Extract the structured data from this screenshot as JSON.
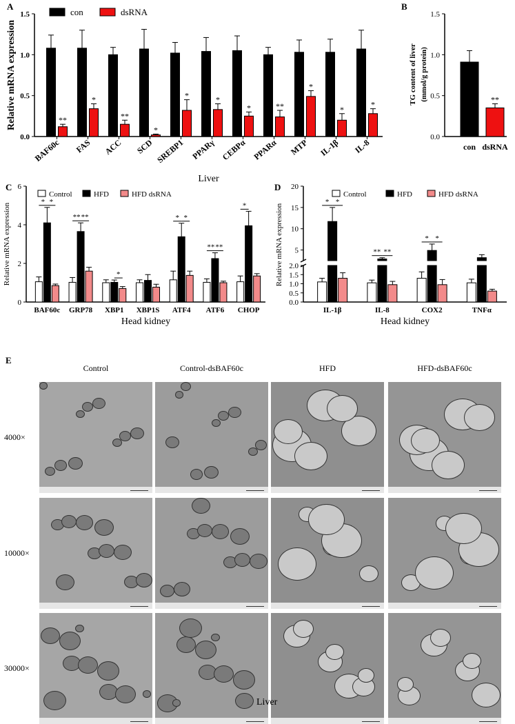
{
  "panel_labels": {
    "A": "A",
    "B": "B",
    "C": "C",
    "D": "D",
    "E": "E"
  },
  "colors": {
    "con": "#000000",
    "dsRNA": "#ee1111",
    "control": "#ffffff",
    "hfd": "#000000",
    "hfd_dsrna": "#f28a8a"
  },
  "chart_data": [
    {
      "id": "A",
      "type": "bar",
      "ylabel": "Relative mRNA expression",
      "xlabel": "Liver",
      "ylim": [
        0,
        1.5
      ],
      "yticks": [
        "0.0",
        "0.5",
        "1.0",
        "1.5"
      ],
      "categories": [
        "BAF60c",
        "FAS",
        "ACC",
        "SCD",
        "SREBP1",
        "PPARγ",
        "CEBPα",
        "PPARα",
        "MTP",
        "IL-1β",
        "IL-8"
      ],
      "series": [
        {
          "name": "con",
          "values": [
            1.08,
            1.08,
            1.0,
            1.07,
            1.02,
            1.04,
            1.05,
            1.0,
            1.03,
            1.03,
            1.07
          ],
          "errors": [
            0.16,
            0.22,
            0.09,
            0.24,
            0.13,
            0.17,
            0.18,
            0.09,
            0.15,
            0.16,
            0.23
          ]
        },
        {
          "name": "dsRNA",
          "values": [
            0.12,
            0.34,
            0.15,
            0.02,
            0.32,
            0.33,
            0.25,
            0.24,
            0.49,
            0.2,
            0.28
          ],
          "errors": [
            0.03,
            0.06,
            0.05,
            0.01,
            0.13,
            0.07,
            0.05,
            0.08,
            0.07,
            0.08,
            0.06
          ]
        }
      ],
      "annotations": [
        "**",
        "*",
        "**",
        "*",
        "*",
        "*",
        "*",
        "**",
        "*",
        "*",
        "*"
      ],
      "legend": "top-left"
    },
    {
      "id": "B",
      "type": "bar",
      "ylabel": "TG content of liver (mmol/g protein)",
      "ylim": [
        0,
        1.5
      ],
      "yticks": [
        "0.0",
        "0.5",
        "1.0",
        "1.5"
      ],
      "categories": [
        "con",
        "dsRNA"
      ],
      "values": [
        0.91,
        0.35
      ],
      "errors": [
        0.14,
        0.05
      ],
      "annotations": [
        "",
        "**"
      ]
    },
    {
      "id": "C",
      "type": "bar",
      "ylabel": "Relative mRNA expression",
      "xlabel": "Head kidney",
      "ylim": [
        0,
        6
      ],
      "yticks": [
        "0",
        "2",
        "4",
        "6"
      ],
      "categories": [
        "BAF60c",
        "GRP78",
        "XBP1",
        "XBP1S",
        "ATF4",
        "ATF6",
        "CHOP"
      ],
      "series": [
        {
          "name": "Control",
          "values": [
            1.05,
            1.02,
            1.0,
            1.0,
            1.15,
            1.02,
            1.05
          ],
          "errors": [
            0.25,
            0.25,
            0.15,
            0.15,
            0.45,
            0.18,
            0.3
          ]
        },
        {
          "name": "HFD",
          "values": [
            4.1,
            3.65,
            1.02,
            1.12,
            3.38,
            2.25,
            3.95
          ],
          "errors": [
            0.8,
            0.45,
            0.12,
            0.3,
            0.7,
            0.3,
            0.75
          ]
        },
        {
          "name": "HFD dsRNA",
          "values": [
            0.85,
            1.6,
            0.7,
            0.77,
            1.38,
            1.0,
            1.35
          ],
          "errors": [
            0.08,
            0.2,
            0.1,
            0.15,
            0.22,
            0.08,
            0.12
          ]
        }
      ],
      "significance": [
        {
          "category": "BAF60c",
          "pairs": [
            "*",
            "*"
          ]
        },
        {
          "category": "GRP78",
          "pairs": [
            "**",
            "**"
          ]
        },
        {
          "category": "XBP1",
          "pairs": [
            "",
            "*"
          ]
        },
        {
          "category": "ATF4",
          "pairs": [
            "*",
            "*"
          ]
        },
        {
          "category": "ATF6",
          "pairs": [
            "**",
            "**"
          ]
        },
        {
          "category": "CHOP",
          "pairs": [
            "*",
            ""
          ]
        }
      ],
      "legend": "top"
    },
    {
      "id": "D",
      "type": "bar",
      "ylabel": "Relative mRNA expression",
      "xlabel": "Head kidney",
      "axis_break": [
        2,
        2.5
      ],
      "yticks": [
        "0.0",
        "0.5",
        "1.0",
        "1.5",
        "2.0",
        "5",
        "10",
        "15",
        "20"
      ],
      "categories": [
        "IL-1β",
        "IL-8",
        "COX2",
        "TNFα"
      ],
      "series": [
        {
          "name": "Control",
          "values": [
            1.1,
            1.05,
            1.3,
            1.05
          ],
          "errors": [
            0.2,
            0.15,
            0.35,
            0.2
          ]
        },
        {
          "name": "HFD",
          "values": [
            11.7,
            2.9,
            4.9,
            3.2
          ],
          "errors": [
            3.3,
            0.3,
            1.5,
            0.7
          ]
        },
        {
          "name": "HFD dsRNA",
          "values": [
            1.3,
            0.95,
            0.95,
            0.6
          ],
          "errors": [
            0.3,
            0.18,
            0.28,
            0.1
          ]
        }
      ],
      "significance": [
        {
          "category": "IL-1β",
          "pairs": [
            "*",
            "*"
          ]
        },
        {
          "category": "IL-8",
          "pairs": [
            "**",
            "**"
          ]
        },
        {
          "category": "COX2",
          "pairs": [
            "*",
            "*"
          ]
        }
      ],
      "legend": "top"
    }
  ],
  "em_panel": {
    "columns": [
      "Control",
      "Control-dsBAF60c",
      "HFD",
      "HFD-dsBAF60c"
    ],
    "rows": [
      "4000×",
      "10000×",
      "30000×"
    ],
    "xlabel": "Liver"
  }
}
